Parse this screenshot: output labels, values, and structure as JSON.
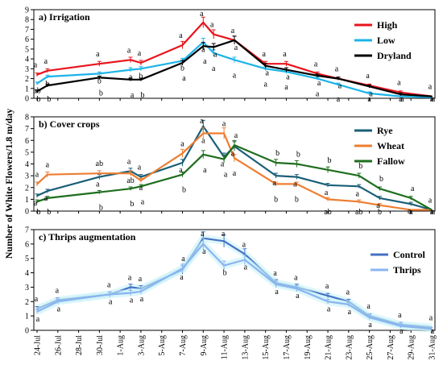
{
  "y_axis_label": "Number of White Flowers/1.8 m/day",
  "chart_data": [
    {
      "type": "line",
      "title": "a) Irrigation",
      "ylim": [
        0,
        9
      ],
      "yticks": [
        0,
        1,
        2,
        3,
        4,
        5,
        6,
        7,
        8,
        9
      ],
      "grid": false,
      "legend_position": "top-right",
      "x_tick_labels": [
        "24-Jul",
        "26-Jul",
        "28-Jul",
        "30-Jul",
        "1-Aug",
        "3-Aug",
        "5-Aug",
        "7-Aug",
        "9-Aug",
        "11-Aug",
        "13-Aug",
        "15-Aug",
        "17-Aug",
        "19-Aug",
        "21-Aug",
        "23-Aug",
        "25-Aug",
        "27-Aug",
        "29-Aug",
        "31-Aug"
      ],
      "x": [
        "24-Jul",
        "25-Jul",
        "30-Jul",
        "2-Aug",
        "3-Aug",
        "7-Aug",
        "9-Aug",
        "10-Aug",
        "12-Aug",
        "15-Aug",
        "17-Aug",
        "20-Aug",
        "22-Aug",
        "25-Aug",
        "28-Aug",
        "31-Aug"
      ],
      "series": [
        {
          "name": "High",
          "color": "#e8141c",
          "values": [
            2.4,
            2.8,
            3.5,
            3.9,
            3.6,
            5.4,
            7.7,
            6.5,
            5.9,
            3.5,
            3.5,
            2.5,
            2.0,
            1.3,
            0.6,
            0.2
          ]
        },
        {
          "name": "Low",
          "color": "#1cb4e8",
          "values": [
            1.5,
            2.2,
            2.5,
            2.9,
            3.0,
            3.8,
            5.7,
            4.6,
            3.9,
            3.0,
            2.7,
            2.0,
            1.4,
            0.5,
            0.2,
            0.1
          ]
        },
        {
          "name": "Dryland",
          "color": "#000000",
          "values": [
            0.7,
            1.3,
            2.1,
            1.9,
            1.9,
            3.6,
            5.3,
            5.2,
            5.9,
            3.3,
            2.9,
            2.3,
            2.0,
            1.2,
            0.4,
            0.2
          ]
        }
      ],
      "letters": [
        [
          "a",
          "ab",
          "b"
        ],
        [
          "a",
          "b",
          "b"
        ],
        [
          "a",
          "b",
          "b"
        ],
        [
          "a",
          "a",
          "a"
        ],
        [
          "a",
          "b",
          "b"
        ],
        [
          "a",
          "b",
          "a"
        ],
        [
          "a",
          "a",
          "a"
        ],
        [
          "a",
          "a",
          "a"
        ],
        [
          "a",
          "a",
          "a"
        ],
        [
          "a",
          "a",
          "a"
        ],
        [
          "a",
          "a",
          "a"
        ],
        [
          "a",
          "a",
          "a"
        ],
        [
          "a",
          "a",
          "a"
        ],
        [
          "a",
          "a",
          "a"
        ],
        [
          "a",
          "a",
          "a"
        ],
        [
          "a",
          "a",
          "a"
        ]
      ]
    },
    {
      "type": "line",
      "title": "b) Cover crops",
      "ylim": [
        0,
        8
      ],
      "yticks": [
        0,
        1,
        2,
        3,
        4,
        5,
        6,
        7,
        8
      ],
      "grid": false,
      "legend_position": "top-right",
      "x_tick_labels": [
        "24-Jul",
        "26-Jul",
        "28-Jul",
        "30-Jul",
        "1-Aug",
        "3-Aug",
        "5-Aug",
        "7-Aug",
        "9-Aug",
        "11-Aug",
        "13-Aug",
        "15-Aug",
        "17-Aug",
        "19-Aug",
        "21-Aug",
        "23-Aug",
        "25-Aug",
        "27-Aug",
        "29-Aug",
        "31-Aug"
      ],
      "x": [
        "24-Jul",
        "25-Jul",
        "30-Jul",
        "2-Aug",
        "3-Aug",
        "7-Aug",
        "9-Aug",
        "11-Aug",
        "12-Aug",
        "16-Aug",
        "18-Aug",
        "21-Aug",
        "24-Aug",
        "26-Aug",
        "29-Aug",
        "31-Aug"
      ],
      "series": [
        {
          "name": "Rye",
          "color": "#1a5f78",
          "values": [
            1.3,
            1.7,
            2.9,
            3.4,
            2.9,
            4.1,
            7.2,
            4.6,
            5.5,
            3.0,
            2.9,
            2.2,
            2.1,
            1.1,
            0.6,
            0.1
          ]
        },
        {
          "name": "Wheat",
          "color": "#ee7d31",
          "values": [
            2.3,
            3.1,
            3.2,
            3.2,
            2.6,
            4.9,
            6.6,
            6.6,
            4.5,
            2.3,
            2.3,
            1.0,
            0.8,
            0.5,
            0.1,
            0.1
          ]
        },
        {
          "name": "Fallow",
          "color": "#1e6e1e",
          "values": [
            0.8,
            1.1,
            1.6,
            1.9,
            2.1,
            3.1,
            4.8,
            4.4,
            5.6,
            4.1,
            4.0,
            3.5,
            3.0,
            1.9,
            1.1,
            0.1
          ]
        }
      ],
      "letters": [
        [
          "a",
          "a",
          "b"
        ],
        [
          "a",
          "a",
          "b"
        ],
        [
          "a",
          "ab",
          "b"
        ],
        [
          "a",
          "ab",
          "b"
        ],
        [
          "a",
          "a",
          "a"
        ],
        [
          "a",
          "a",
          "b"
        ],
        [
          "a",
          "a",
          "a"
        ],
        [
          "a",
          "a",
          "a"
        ],
        [
          "a",
          "a",
          "a"
        ],
        [
          "a",
          "b",
          "b"
        ],
        [
          "a",
          "b",
          "b"
        ],
        [
          "a",
          "ab",
          "b"
        ],
        [
          "a",
          "ab",
          "b"
        ],
        [
          "a",
          "b",
          "b"
        ],
        [
          "a",
          "a",
          "a"
        ],
        [
          "a",
          "a",
          "a"
        ]
      ]
    },
    {
      "type": "line",
      "title": "c) Thrips augmentation",
      "ylim": [
        0,
        7
      ],
      "yticks": [
        0,
        1,
        2,
        3,
        4,
        5,
        6,
        7
      ],
      "grid": false,
      "legend_position": "top-right",
      "x_tick_labels": [
        "24-Jul",
        "26-Jul",
        "28-Jul",
        "30-Jul",
        "1-Aug",
        "3-Aug",
        "5-Aug",
        "7-Aug",
        "9-Aug",
        "11-Aug",
        "13-Aug",
        "15-Aug",
        "17-Aug",
        "19-Aug",
        "21-Aug",
        "23-Aug",
        "25-Aug",
        "27-Aug",
        "29-Aug",
        "31-Aug"
      ],
      "x": [
        "24-Jul",
        "26-Jul",
        "31-Jul",
        "2-Aug",
        "3-Aug",
        "7-Aug",
        "9-Aug",
        "11-Aug",
        "13-Aug",
        "16-Aug",
        "18-Aug",
        "21-Aug",
        "23-Aug",
        "25-Aug",
        "28-Aug",
        "31-Aug"
      ],
      "series": [
        {
          "name": "Control",
          "color": "#4472c4",
          "values": [
            1.5,
            2.1,
            2.5,
            3.0,
            2.9,
            4.2,
            6.4,
            6.2,
            5.3,
            3.3,
            3.0,
            2.4,
            2.0,
            1.0,
            0.4,
            0.2
          ]
        },
        {
          "name": "Thrips",
          "color": "#8ab4f0",
          "values": [
            1.3,
            2.0,
            2.5,
            2.6,
            2.7,
            4.3,
            6.0,
            4.5,
            4.9,
            3.2,
            2.9,
            2.0,
            1.8,
            0.9,
            0.3,
            0.1
          ]
        }
      ],
      "letters": [
        [
          "a",
          "a"
        ],
        [
          "a",
          "a"
        ],
        [
          "a",
          "a"
        ],
        [
          "a",
          "a"
        ],
        [
          "a",
          "a"
        ],
        [
          "a",
          "a"
        ],
        [
          "a",
          "a"
        ],
        [
          "a",
          "b"
        ],
        [
          "a",
          "a"
        ],
        [
          "a",
          "a"
        ],
        [
          "a",
          "a"
        ],
        [
          "a",
          "a"
        ],
        [
          "a",
          "a"
        ],
        [
          "a",
          "a"
        ],
        [
          "a",
          "a"
        ],
        [
          "a",
          "a"
        ]
      ]
    }
  ]
}
